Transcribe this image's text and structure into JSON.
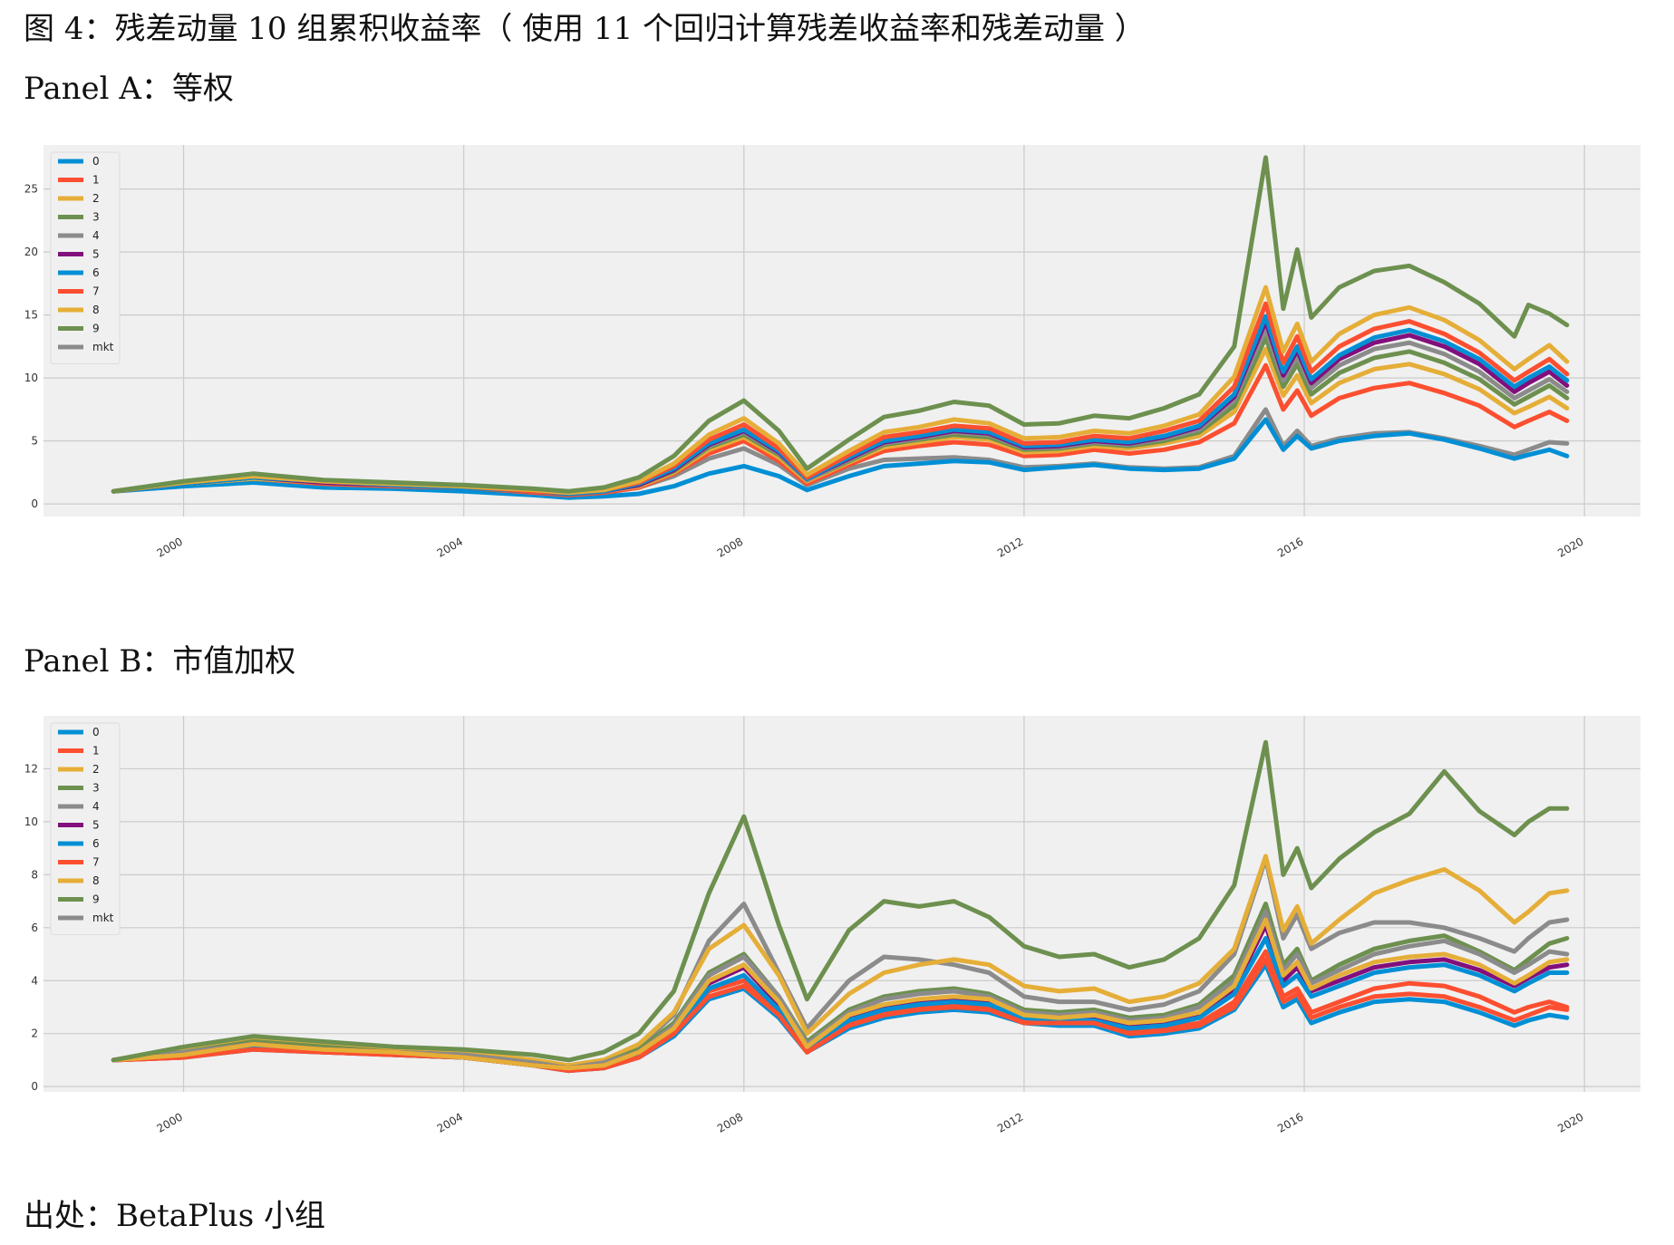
{
  "figure_title": "图 4：残差动量 10 组累积收益率（ 使用 11 个回归计算残差收益率和残差动量 ）",
  "panel_a_title": "Panel A：等权",
  "panel_b_title": "Panel B：市值加权",
  "source_note": "出处：BetaPlus 小组",
  "colors": {
    "0": "#008fd5",
    "1": "#fc4f30",
    "2": "#e5ae38",
    "3": "#6d904f",
    "4": "#8b8b8b",
    "5": "#810f7c",
    "6": "#008fd5",
    "7": "#fc4f30",
    "8": "#e5ae38",
    "9": "#6d904f",
    "mkt": "#8b8b8b",
    "plot_bg": "#f0f0f0",
    "grid": "#cbcbcb"
  },
  "chart_data": [
    {
      "type": "line",
      "title": "Panel A：等权",
      "xlabel": "",
      "ylabel": "",
      "xlim": [
        1998.0,
        2020.8
      ],
      "ylim": [
        -1,
        28.5
      ],
      "x_ticks": [
        2000,
        2004,
        2008,
        2012,
        2016,
        2020
      ],
      "y_ticks": [
        0,
        5,
        10,
        15,
        20,
        25
      ],
      "grid": true,
      "legend_position": "top-left",
      "x": [
        1999.0,
        2000.0,
        2001.0,
        2002.0,
        2003.0,
        2004.0,
        2005.0,
        2005.5,
        2006.0,
        2006.5,
        2007.0,
        2007.5,
        2008.0,
        2008.5,
        2008.9,
        2009.5,
        2010.0,
        2010.5,
        2011.0,
        2011.5,
        2012.0,
        2012.5,
        2013.0,
        2013.5,
        2014.0,
        2014.5,
        2015.0,
        2015.45,
        2015.7,
        2015.9,
        2016.1,
        2016.5,
        2017.0,
        2017.5,
        2018.0,
        2018.5,
        2019.0,
        2019.2,
        2019.5,
        2019.75
      ],
      "series": [
        {
          "name": "0",
          "values": [
            1.0,
            1.4,
            1.7,
            1.3,
            1.2,
            1.0,
            0.7,
            0.5,
            0.6,
            0.8,
            1.4,
            2.4,
            3.0,
            2.2,
            1.1,
            2.2,
            3.0,
            3.2,
            3.4,
            3.3,
            2.7,
            2.9,
            3.1,
            2.8,
            2.7,
            2.8,
            3.6,
            6.7,
            4.3,
            5.4,
            4.4,
            5.0,
            5.4,
            5.6,
            5.1,
            4.4,
            3.6,
            3.9,
            4.3,
            3.8
          ]
        },
        {
          "name": "1",
          "values": [
            1.0,
            1.6,
            2.0,
            1.6,
            1.4,
            1.3,
            0.9,
            0.7,
            0.9,
            1.3,
            2.4,
            4.0,
            5.0,
            3.4,
            1.6,
            3.1,
            4.2,
            4.6,
            4.9,
            4.7,
            3.8,
            3.9,
            4.3,
            4.0,
            4.3,
            4.9,
            6.4,
            11.0,
            7.5,
            9.0,
            7.0,
            8.4,
            9.2,
            9.6,
            8.8,
            7.8,
            6.1,
            6.6,
            7.3,
            6.6
          ]
        },
        {
          "name": "2",
          "values": [
            1.0,
            1.6,
            2.0,
            1.7,
            1.5,
            1.3,
            1.0,
            0.8,
            1.0,
            1.4,
            2.5,
            4.3,
            5.3,
            3.7,
            1.8,
            3.3,
            4.5,
            4.9,
            5.3,
            5.1,
            4.1,
            4.2,
            4.6,
            4.4,
            4.8,
            5.4,
            7.3,
            12.3,
            8.6,
            10.2,
            8.0,
            9.6,
            10.7,
            11.1,
            10.3,
            9.1,
            7.2,
            7.7,
            8.5,
            7.6
          ]
        },
        {
          "name": "3",
          "values": [
            1.0,
            1.6,
            2.1,
            1.7,
            1.5,
            1.3,
            1.0,
            0.8,
            1.0,
            1.5,
            2.6,
            4.5,
            5.5,
            3.9,
            1.9,
            3.4,
            4.7,
            5.1,
            5.5,
            5.3,
            4.3,
            4.4,
            4.8,
            4.6,
            5.0,
            5.7,
            7.8,
            13.2,
            9.3,
            11.1,
            8.7,
            10.4,
            11.6,
            12.1,
            11.2,
            9.9,
            7.9,
            8.5,
            9.4,
            8.4
          ]
        },
        {
          "name": "4",
          "values": [
            1.0,
            1.6,
            2.1,
            1.7,
            1.5,
            1.3,
            1.0,
            0.8,
            1.0,
            1.5,
            2.7,
            4.6,
            5.7,
            4.0,
            1.9,
            3.5,
            4.8,
            5.2,
            5.7,
            5.5,
            4.4,
            4.5,
            4.9,
            4.7,
            5.2,
            5.9,
            8.2,
            13.9,
            9.8,
            11.7,
            9.2,
            11.0,
            12.3,
            12.8,
            11.9,
            10.5,
            8.4,
            9.0,
            9.9,
            8.9
          ]
        },
        {
          "name": "5",
          "values": [
            1.0,
            1.6,
            2.1,
            1.7,
            1.5,
            1.3,
            1.0,
            0.8,
            1.0,
            1.5,
            2.7,
            4.7,
            5.8,
            4.1,
            2.0,
            3.6,
            4.9,
            5.3,
            5.8,
            5.6,
            4.5,
            4.6,
            5.0,
            4.8,
            5.3,
            6.1,
            8.5,
            14.5,
            10.2,
            12.2,
            9.6,
            11.5,
            12.8,
            13.4,
            12.5,
            11.1,
            8.9,
            9.6,
            10.5,
            9.4
          ]
        },
        {
          "name": "6",
          "values": [
            1.0,
            1.6,
            2.1,
            1.8,
            1.5,
            1.3,
            1.0,
            0.8,
            1.0,
            1.6,
            2.8,
            4.8,
            5.9,
            4.2,
            2.0,
            3.7,
            5.0,
            5.4,
            5.9,
            5.7,
            4.6,
            4.7,
            5.1,
            4.9,
            5.4,
            6.2,
            8.7,
            14.9,
            10.5,
            12.5,
            9.9,
            11.8,
            13.2,
            13.8,
            12.9,
            11.5,
            9.3,
            10.0,
            10.9,
            9.8
          ]
        },
        {
          "name": "7",
          "values": [
            1.0,
            1.7,
            2.2,
            1.8,
            1.6,
            1.4,
            1.0,
            0.9,
            1.1,
            1.7,
            3.0,
            5.1,
            6.3,
            4.4,
            2.1,
            3.9,
            5.3,
            5.7,
            6.2,
            6.0,
            4.8,
            4.9,
            5.4,
            5.2,
            5.8,
            6.6,
            9.3,
            15.9,
            11.2,
            13.3,
            10.5,
            12.5,
            13.9,
            14.5,
            13.5,
            12.0,
            9.8,
            10.5,
            11.5,
            10.3
          ]
        },
        {
          "name": "8",
          "values": [
            1.0,
            1.7,
            2.2,
            1.8,
            1.6,
            1.4,
            1.1,
            0.9,
            1.1,
            1.8,
            3.2,
            5.5,
            6.8,
            4.8,
            2.3,
            4.2,
            5.7,
            6.1,
            6.7,
            6.4,
            5.2,
            5.3,
            5.8,
            5.6,
            6.2,
            7.1,
            10.1,
            17.2,
            12.1,
            14.3,
            11.3,
            13.5,
            15.0,
            15.6,
            14.6,
            13.0,
            10.7,
            11.5,
            12.6,
            11.3
          ]
        },
        {
          "name": "9",
          "values": [
            1.0,
            1.8,
            2.4,
            1.9,
            1.7,
            1.5,
            1.2,
            1.0,
            1.3,
            2.1,
            3.8,
            6.6,
            8.2,
            5.8,
            2.8,
            5.1,
            6.9,
            7.4,
            8.1,
            7.8,
            6.3,
            6.4,
            7.0,
            6.8,
            7.6,
            8.7,
            12.5,
            27.5,
            15.5,
            20.2,
            14.8,
            17.2,
            18.5,
            18.9,
            17.6,
            15.9,
            13.3,
            15.8,
            15.1,
            14.2
          ]
        },
        {
          "name": "mkt",
          "values": [
            1.0,
            1.5,
            1.9,
            1.6,
            1.4,
            1.2,
            0.9,
            0.7,
            0.9,
            1.3,
            2.2,
            3.6,
            4.4,
            3.1,
            1.5,
            2.8,
            3.5,
            3.6,
            3.7,
            3.5,
            2.9,
            3.0,
            3.2,
            2.9,
            2.8,
            2.9,
            3.8,
            7.5,
            4.6,
            5.8,
            4.6,
            5.2,
            5.6,
            5.7,
            5.2,
            4.6,
            3.9,
            4.3,
            4.9,
            4.8
          ]
        }
      ]
    },
    {
      "type": "line",
      "title": "Panel B：市值加权",
      "xlabel": "",
      "ylabel": "",
      "xlim": [
        1998.0,
        2020.8
      ],
      "ylim": [
        -0.2,
        14.0
      ],
      "x_ticks": [
        2000,
        2004,
        2008,
        2012,
        2016,
        2020
      ],
      "y_ticks": [
        0,
        2,
        4,
        6,
        8,
        10,
        12
      ],
      "grid": true,
      "legend_position": "top-left",
      "x": [
        1999.0,
        2000.0,
        2001.0,
        2002.0,
        2003.0,
        2004.0,
        2005.0,
        2005.5,
        2006.0,
        2006.5,
        2007.0,
        2007.5,
        2008.0,
        2008.5,
        2008.9,
        2009.5,
        2010.0,
        2010.5,
        2011.0,
        2011.5,
        2012.0,
        2012.5,
        2013.0,
        2013.5,
        2014.0,
        2014.5,
        2015.0,
        2015.45,
        2015.7,
        2015.9,
        2016.1,
        2016.5,
        2017.0,
        2017.5,
        2018.0,
        2018.5,
        2019.0,
        2019.2,
        2019.5,
        2019.75
      ],
      "series": [
        {
          "name": "0",
          "values": [
            1.0,
            1.1,
            1.4,
            1.3,
            1.2,
            1.1,
            0.8,
            0.6,
            0.7,
            1.1,
            1.9,
            3.3,
            3.7,
            2.6,
            1.3,
            2.2,
            2.6,
            2.8,
            2.9,
            2.8,
            2.4,
            2.3,
            2.3,
            1.9,
            2.0,
            2.2,
            2.9,
            4.6,
            3.0,
            3.3,
            2.4,
            2.8,
            3.2,
            3.3,
            3.2,
            2.8,
            2.3,
            2.5,
            2.7,
            2.6
          ]
        },
        {
          "name": "1",
          "values": [
            1.0,
            1.1,
            1.5,
            1.3,
            1.2,
            1.1,
            0.8,
            0.6,
            0.8,
            1.2,
            2.1,
            3.6,
            4.0,
            2.8,
            1.4,
            2.4,
            2.8,
            3.0,
            3.1,
            3.0,
            2.5,
            2.4,
            2.5,
            2.1,
            2.2,
            2.4,
            3.2,
            5.1,
            3.4,
            3.7,
            2.8,
            3.2,
            3.7,
            3.9,
            3.8,
            3.4,
            2.8,
            3.0,
            3.2,
            3.0
          ]
        },
        {
          "name": "2",
          "values": [
            1.0,
            1.4,
            1.8,
            1.6,
            1.4,
            1.3,
            1.0,
            0.8,
            1.0,
            1.6,
            2.8,
            5.2,
            6.1,
            4.2,
            2.0,
            3.5,
            4.3,
            4.6,
            4.8,
            4.6,
            3.8,
            3.6,
            3.7,
            3.2,
            3.4,
            3.9,
            5.2,
            8.7,
            5.9,
            6.8,
            5.4,
            6.3,
            7.3,
            7.8,
            8.2,
            7.4,
            6.2,
            6.6,
            7.3,
            7.4
          ]
        },
        {
          "name": "3",
          "values": [
            1.0,
            1.3,
            1.7,
            1.5,
            1.3,
            1.2,
            0.9,
            0.7,
            0.9,
            1.4,
            2.4,
            4.3,
            5.0,
            3.4,
            1.7,
            2.9,
            3.4,
            3.6,
            3.7,
            3.5,
            2.9,
            2.8,
            2.9,
            2.6,
            2.7,
            3.1,
            4.2,
            6.9,
            4.6,
            5.2,
            4.0,
            4.6,
            5.2,
            5.5,
            5.7,
            5.1,
            4.4,
            4.8,
            5.4,
            5.6
          ]
        },
        {
          "name": "4",
          "values": [
            1.0,
            1.3,
            1.6,
            1.4,
            1.3,
            1.2,
            0.9,
            0.7,
            0.9,
            1.3,
            2.3,
            4.2,
            4.9,
            3.4,
            1.6,
            2.8,
            3.3,
            3.5,
            3.6,
            3.4,
            2.8,
            2.7,
            2.8,
            2.5,
            2.6,
            3.0,
            4.0,
            6.6,
            4.4,
            5.0,
            3.9,
            4.4,
            5.0,
            5.3,
            5.5,
            5.0,
            4.3,
            4.6,
            5.1,
            5.0
          ]
        },
        {
          "name": "5",
          "values": [
            1.0,
            1.2,
            1.6,
            1.4,
            1.3,
            1.1,
            0.8,
            0.7,
            0.8,
            1.3,
            2.2,
            3.9,
            4.5,
            3.1,
            1.5,
            2.6,
            3.0,
            3.2,
            3.3,
            3.2,
            2.6,
            2.6,
            2.6,
            2.3,
            2.4,
            2.7,
            3.7,
            6.1,
            4.0,
            4.5,
            3.6,
            4.0,
            4.5,
            4.7,
            4.8,
            4.4,
            3.8,
            4.1,
            4.5,
            4.6
          ]
        },
        {
          "name": "6",
          "values": [
            1.0,
            1.2,
            1.5,
            1.4,
            1.2,
            1.1,
            0.8,
            0.6,
            0.8,
            1.2,
            2.1,
            3.7,
            4.2,
            2.9,
            1.4,
            2.5,
            2.9,
            3.1,
            3.2,
            3.1,
            2.6,
            2.5,
            2.5,
            2.2,
            2.3,
            2.6,
            3.5,
            5.6,
            3.8,
            4.2,
            3.4,
            3.8,
            4.3,
            4.5,
            4.6,
            4.2,
            3.6,
            3.9,
            4.3,
            4.3
          ]
        },
        {
          "name": "7",
          "values": [
            1.0,
            1.1,
            1.4,
            1.3,
            1.2,
            1.1,
            0.8,
            0.6,
            0.7,
            1.1,
            2.0,
            3.4,
            3.8,
            2.7,
            1.3,
            2.3,
            2.7,
            2.9,
            3.0,
            2.9,
            2.4,
            2.4,
            2.4,
            2.0,
            2.1,
            2.3,
            3.0,
            4.8,
            3.2,
            3.5,
            2.6,
            3.0,
            3.4,
            3.5,
            3.4,
            3.0,
            2.5,
            2.7,
            3.0,
            2.9
          ]
        },
        {
          "name": "8",
          "values": [
            1.0,
            1.2,
            1.6,
            1.4,
            1.3,
            1.1,
            0.8,
            0.7,
            0.8,
            1.3,
            2.2,
            4.0,
            4.6,
            3.2,
            1.5,
            2.7,
            3.1,
            3.3,
            3.4,
            3.3,
            2.7,
            2.6,
            2.7,
            2.4,
            2.5,
            2.8,
            3.8,
            6.3,
            4.2,
            4.7,
            3.7,
            4.2,
            4.7,
            4.9,
            5.0,
            4.6,
            3.9,
            4.2,
            4.7,
            4.8
          ]
        },
        {
          "name": "9",
          "values": [
            1.0,
            1.5,
            1.9,
            1.7,
            1.5,
            1.4,
            1.2,
            1.0,
            1.3,
            2.0,
            3.6,
            7.3,
            10.2,
            6.1,
            3.3,
            5.9,
            7.0,
            6.8,
            7.0,
            6.4,
            5.3,
            4.9,
            5.0,
            4.5,
            4.8,
            5.6,
            7.6,
            13.0,
            8.0,
            9.0,
            7.5,
            8.6,
            9.6,
            10.3,
            11.9,
            10.4,
            9.5,
            10.0,
            10.5,
            10.5
          ]
        },
        {
          "name": "mkt",
          "values": [
            1.0,
            1.3,
            1.7,
            1.5,
            1.3,
            1.2,
            0.9,
            0.8,
            1.0,
            1.5,
            2.7,
            5.5,
            6.9,
            4.3,
            2.2,
            4.0,
            4.9,
            4.8,
            4.6,
            4.3,
            3.4,
            3.2,
            3.2,
            2.9,
            3.1,
            3.6,
            5.0,
            8.6,
            5.6,
            6.5,
            5.2,
            5.8,
            6.2,
            6.2,
            6.0,
            5.6,
            5.1,
            5.6,
            6.2,
            6.3
          ]
        }
      ]
    }
  ]
}
